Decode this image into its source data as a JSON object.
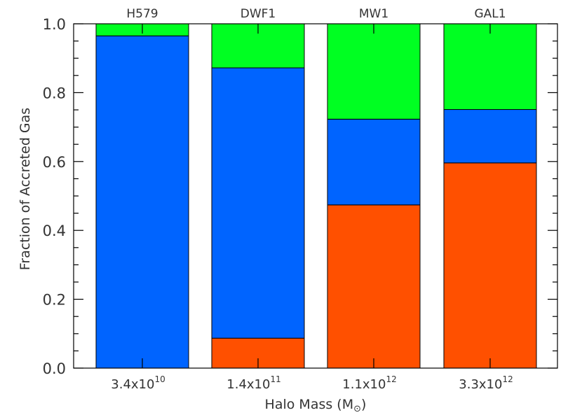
{
  "chart_data": {
    "type": "bar",
    "stacked": true,
    "categories": [
      "H579",
      "DWF1",
      "MW1",
      "GAL1"
    ],
    "x_tick_labels": [
      {
        "mantissa": "3.4x10",
        "exponent": "10"
      },
      {
        "mantissa": "1.4x10",
        "exponent": "11"
      },
      {
        "mantissa": "1.1x10",
        "exponent": "12"
      },
      {
        "mantissa": "3.3x10",
        "exponent": "12"
      }
    ],
    "series": [
      {
        "color": "#ff5000",
        "values": [
          0.0,
          0.087,
          0.474,
          0.596
        ]
      },
      {
        "color": "#0064ff",
        "values": [
          0.965,
          0.785,
          0.249,
          0.155
        ]
      },
      {
        "color": "#00ff22",
        "values": [
          0.035,
          0.128,
          0.277,
          0.249
        ]
      }
    ],
    "xlabel": "Halo Mass (M",
    "xlabel_symbol": "⊙",
    "xlabel_close": ")",
    "ylabel": "Fraction of Accreted Gas",
    "ylim": [
      0.0,
      1.0
    ],
    "y_ticks": [
      "0.0",
      "0.2",
      "0.4",
      "0.6",
      "0.8",
      "1.0"
    ],
    "grid": false,
    "legend": "none"
  }
}
